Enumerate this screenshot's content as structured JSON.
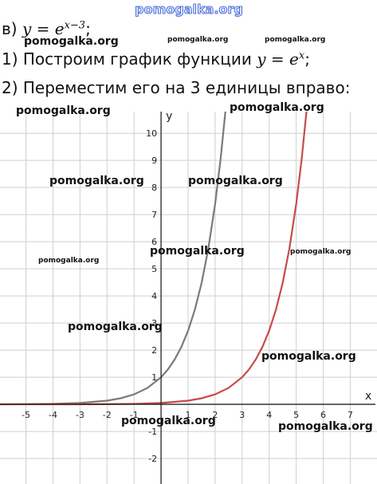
{
  "header": {
    "site": "pomogalka.org"
  },
  "lines": [
    {
      "label": "в)",
      "formula": "y = e",
      "exponent": "x−3",
      "end": ";"
    },
    {
      "label": "1) Построим график функции",
      "formula": "y = e",
      "exponent": "x",
      "end": ";"
    },
    {
      "label": "2) Переместим его на 3 единицы вправо:"
    }
  ],
  "watermarks": [
    "pomogalka.org",
    "pomogalka.org",
    "pomogalka.org",
    "pomogalka.org",
    "pomogalka.org",
    "pomogalka.org",
    "pomogalka.org",
    "pomogalka.org",
    "pomogalka.org",
    "pomogalka.org",
    "pomogalka.org",
    "pomogalka.org",
    "pomogalka.org",
    "pomogalka.org",
    "pomogalka.org"
  ],
  "chart_data": {
    "type": "line",
    "x_label": "x",
    "y_label": "y",
    "xlim": [
      -5.96,
      7.99
    ],
    "ylim": [
      -2.94,
      10.8
    ],
    "xticks": [
      -5,
      -4,
      -3,
      -2,
      -1,
      1,
      2,
      3,
      4,
      5,
      6,
      7
    ],
    "yticks": [
      -2,
      -1,
      1,
      2,
      3,
      4,
      5,
      6,
      7,
      8,
      9,
      10
    ],
    "grid": true,
    "series": [
      {
        "color": "#7a7a7a",
        "x": [
          -6,
          -5,
          -4,
          -3,
          -2,
          -1.5,
          -1,
          -0.5,
          0,
          0.25,
          0.5,
          0.75,
          1,
          1.25,
          1.5,
          1.75,
          2,
          2.2,
          2.38
        ],
        "values": [
          0.0025,
          0.0067,
          0.018,
          0.05,
          0.135,
          0.223,
          0.368,
          0.607,
          1,
          1.284,
          1.649,
          2.117,
          2.718,
          3.49,
          4.482,
          5.755,
          7.389,
          9.025,
          10.8
        ]
      },
      {
        "color": "#c94a4a",
        "x": [
          -6,
          -3,
          -2,
          -1,
          0,
          1,
          1.5,
          2,
          2.5,
          3,
          3.25,
          3.5,
          3.75,
          4,
          4.25,
          4.5,
          4.75,
          5,
          5.2,
          5.38
        ],
        "values": [
          0.0001,
          0.0025,
          0.0067,
          0.018,
          0.05,
          0.135,
          0.223,
          0.368,
          0.607,
          1,
          1.284,
          1.649,
          2.117,
          2.718,
          3.49,
          4.482,
          5.755,
          7.389,
          9.025,
          10.8
        ]
      }
    ]
  }
}
